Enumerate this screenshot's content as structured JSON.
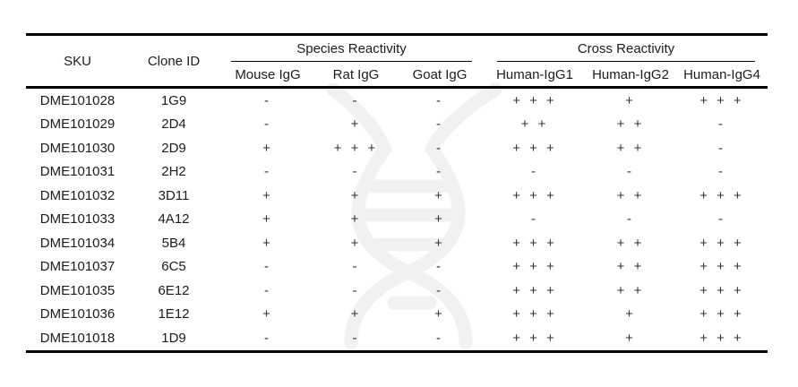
{
  "watermark": {
    "name": "dna-double-helix",
    "color": "#f1f1f1"
  },
  "table": {
    "header_groups": [
      {
        "label": "Species Reactivity"
      },
      {
        "label": "Cross Reactivity"
      }
    ],
    "columns": [
      "SKU",
      "Clone ID",
      "Mouse IgG",
      "Rat IgG",
      "Goat IgG",
      "Human-IgG1",
      "Human-IgG2",
      "Human-IgG4"
    ],
    "rows": [
      [
        "DME101028",
        "1G9",
        "-",
        "-",
        "-",
        "+ + +",
        "+",
        "+ + +"
      ],
      [
        "DME101029",
        "2D4",
        "-",
        "+",
        "-",
        "+ +",
        "+ +",
        "-"
      ],
      [
        "DME101030",
        "2D9",
        "+",
        "+ + +",
        "-",
        "+ + +",
        "+ +",
        "-"
      ],
      [
        "DME101031",
        "2H2",
        "-",
        "-",
        "-",
        "-",
        "-",
        "-"
      ],
      [
        "DME101032",
        "3D11",
        "+",
        "+",
        "+",
        "+ + +",
        "+ +",
        "+ + +"
      ],
      [
        "DME101033",
        "4A12",
        "+",
        "+",
        "+",
        "-",
        "-",
        "-"
      ],
      [
        "DME101034",
        "5B4",
        "+",
        "+",
        "+",
        "+ + +",
        "+ +",
        "+ + +"
      ],
      [
        "DME101037",
        "6C5",
        "-",
        "-",
        "-",
        "+ + +",
        "+ +",
        "+ + +"
      ],
      [
        "DME101035",
        "6E12",
        "-",
        "-",
        "-",
        "+ + +",
        "+ +",
        "+ + +"
      ],
      [
        "DME101036",
        "1E12",
        "+",
        "+",
        "+",
        "+ + +",
        "+",
        "+ + +"
      ],
      [
        "DME101018",
        "1D9",
        "-",
        "-",
        "-",
        "+ + +",
        "+",
        "+ + +"
      ]
    ]
  }
}
